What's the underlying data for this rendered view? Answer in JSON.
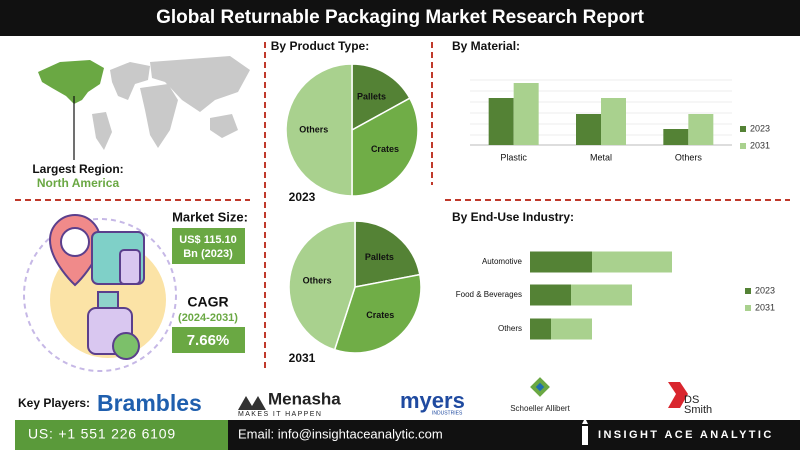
{
  "header": {
    "title": "Global Returnable Packaging Market Research Report"
  },
  "sections": {
    "product_type": "By Product Type:"
  },
  "region": {
    "label": "Largest Region:",
    "value": "North America"
  },
  "market_size": {
    "label": "Market Size:",
    "lines": [
      "US$ 115.10",
      "Bn (2023)"
    ]
  },
  "cagr": {
    "label": "CAGR",
    "period": "(2024-2031)",
    "value": "7.66%"
  },
  "key_players": {
    "label": "Key Players:",
    "logos": [
      "Brambles",
      "Menasha",
      "MAKES IT HAPPEN",
      "myers",
      "INDUSTRIES",
      "Schoeller Allibert",
      "DS",
      "Smith"
    ]
  },
  "footer": {
    "phone": "US: +1 551 226 6109",
    "email": "Email: info@insightaceanalytic.com",
    "brand": "INSIGHT ACE ANALYTIC"
  },
  "chart_data": [
    {
      "type": "pie",
      "title": "2023",
      "categories": [
        "Pallets",
        "Crates",
        "Others"
      ],
      "values": [
        17,
        33,
        50
      ],
      "colors": [
        "#548235",
        "#70ad47",
        "#a9d18e"
      ]
    },
    {
      "type": "pie",
      "title": "2031",
      "categories": [
        "Pallets",
        "Crates",
        "Others"
      ],
      "values": [
        22,
        33,
        45
      ],
      "colors": [
        "#548235",
        "#70ad47",
        "#a9d18e"
      ]
    },
    {
      "type": "bar",
      "title": "By Material:",
      "categories": [
        "Plastic",
        "Metal",
        "Others"
      ],
      "series": [
        {
          "name": "2023",
          "color": "#548235",
          "values": [
            47,
            31,
            16
          ]
        },
        {
          "name": "2031",
          "color": "#a9d18e",
          "values": [
            62,
            47,
            31
          ]
        }
      ],
      "ylim": [
        0,
        70
      ],
      "legend": "right"
    },
    {
      "type": "barh",
      "title": "By End-Use Industry:",
      "stacked": true,
      "categories": [
        "Automotive",
        "Food & Beverages",
        "Others"
      ],
      "series": [
        {
          "name": "2023",
          "color": "#548235",
          "values": [
            62,
            41,
            21
          ]
        },
        {
          "name": "2031",
          "color": "#a9d18e",
          "values": [
            80,
            61,
            41
          ]
        }
      ],
      "xlim": [
        0,
        160
      ],
      "legend": "right"
    }
  ]
}
